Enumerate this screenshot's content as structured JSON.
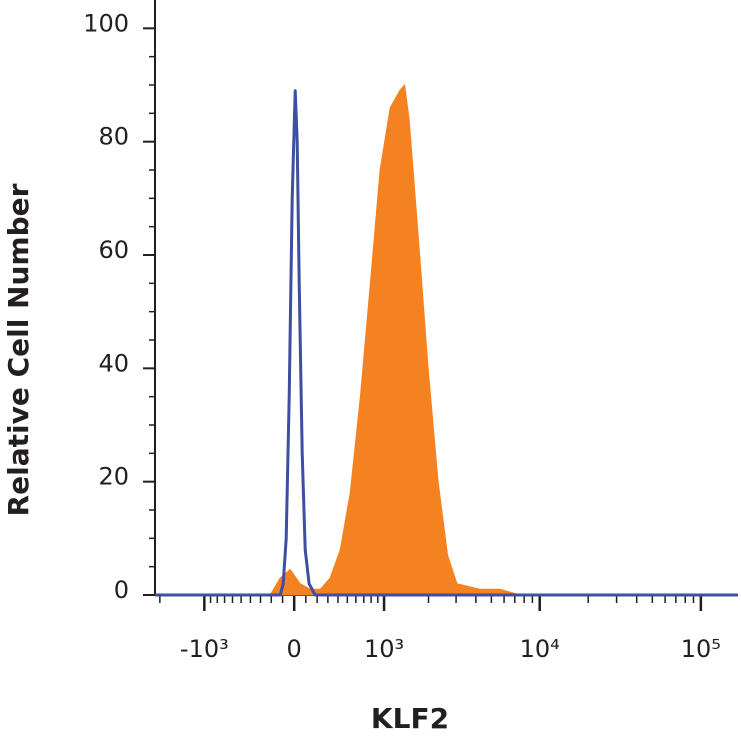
{
  "chart_data": {
    "type": "flow-histogram",
    "x_label": "KLF2",
    "y_label": "Relative Cell Number",
    "x_scale": "biexponential",
    "xlim": [
      -2150,
      170000
    ],
    "xticks": [
      {
        "value": -1000,
        "label": "-10³"
      },
      0,
      {
        "value": 1000,
        "label": "10³"
      },
      {
        "value": 10000,
        "label": "10⁴"
      },
      {
        "value": 100000,
        "label": "10⁵"
      }
    ],
    "xminorticks": [
      -2000,
      -900,
      -800,
      -700,
      -600,
      -500,
      -400,
      -300,
      -200,
      -100,
      100,
      200,
      300,
      400,
      500,
      600,
      700,
      800,
      900,
      2000,
      3000,
      4000,
      5000,
      6000,
      7000,
      8000,
      9000,
      20000,
      30000,
      40000,
      50000,
      60000,
      70000,
      80000,
      90000
    ],
    "ylim": [
      0,
      105
    ],
    "yticks": [
      0,
      20,
      40,
      60,
      80,
      100
    ],
    "yminorticks": [
      5,
      10,
      15,
      25,
      30,
      35,
      45,
      50,
      55,
      65,
      70,
      75,
      85,
      90,
      95
    ],
    "series": [
      {
        "color": "#f58220",
        "fill": true,
        "x": [
          -210,
          -121,
          -34,
          51,
          138,
          229,
          321,
          424,
          533,
          656,
          790,
          935,
          1106,
          1288,
          1390,
          1490,
          1729,
          1988,
          2304,
          2652,
          3036,
          4270,
          5666,
          7542
        ],
        "values": [
          0,
          3,
          4.5,
          2,
          1,
          1,
          3,
          8,
          18,
          35,
          55,
          75,
          86,
          89,
          90,
          84,
          62,
          40,
          20,
          7,
          2,
          1,
          1,
          0
        ]
      },
      {
        "color": "#3c4fa0",
        "fill": false,
        "x": [
          -2150,
          -120,
          -95,
          -69,
          -43,
          -17,
          8.6,
          26,
          43,
          69,
          95,
          129,
          182,
          170000
        ],
        "values": [
          0,
          0,
          2,
          10,
          35,
          70,
          89,
          80,
          55,
          25,
          8,
          2,
          0,
          0
        ]
      }
    ]
  }
}
